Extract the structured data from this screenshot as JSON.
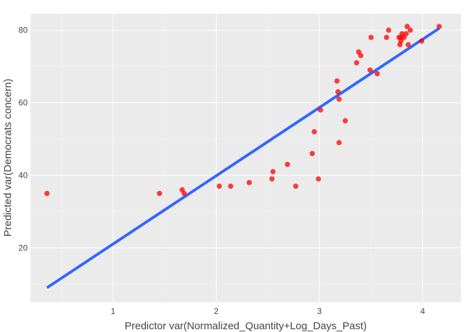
{
  "chart_data": {
    "type": "scatter",
    "title": "",
    "xlabel": "Predictor var(Normalized_Quantity+Log_Days_Past)",
    "ylabel": "Predicted var(Democrats concern)",
    "xlim": [
      0.2,
      4.37
    ],
    "ylim": [
      5,
      84.5
    ],
    "x_ticks": [
      1,
      2,
      3,
      4
    ],
    "y_ticks": [
      20,
      40,
      60,
      80
    ],
    "grid": true,
    "legend": "none",
    "colors": {
      "background": "#ebebeb",
      "grid": "#ffffff",
      "points": "#ff0000",
      "fit_line": "#3366ff"
    },
    "series": [
      {
        "kind": "points",
        "x": [
          0.36,
          1.45,
          1.67,
          1.69,
          2.03,
          2.14,
          2.32,
          2.54,
          2.55,
          2.69,
          2.77,
          2.93,
          2.95,
          2.99,
          3.01,
          3.17,
          3.18,
          3.19,
          3.19,
          3.25,
          3.36,
          3.38,
          3.4,
          3.49,
          3.5,
          3.56,
          3.65,
          3.67,
          3.77,
          3.78,
          3.79,
          3.79,
          3.8,
          3.82,
          3.84,
          3.85,
          3.86,
          3.88,
          3.99,
          4.16
        ],
        "y": [
          35,
          35,
          36,
          35,
          37,
          37,
          38,
          39,
          41,
          43,
          37,
          46,
          52,
          39,
          58,
          66,
          63,
          61,
          49,
          55,
          71,
          74,
          73,
          69,
          78,
          68,
          78,
          80,
          78,
          76,
          77,
          78,
          79,
          78,
          79,
          81,
          76,
          80,
          77,
          81
        ]
      },
      {
        "kind": "line",
        "x": [
          0.36,
          4.16
        ],
        "y": [
          9,
          80.5
        ]
      }
    ]
  }
}
